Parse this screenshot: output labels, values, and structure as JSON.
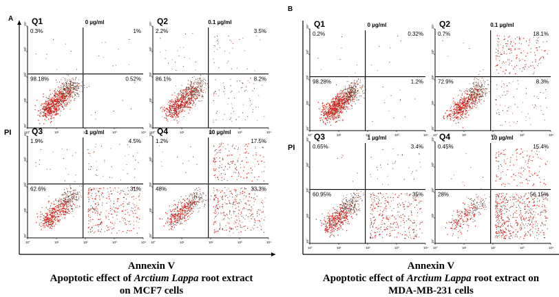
{
  "chart_data": [
    {
      "type": "scatter",
      "panel_label": "A",
      "xlabel": "Annexin V",
      "ylabel": "PI",
      "caption": {
        "line1_pre": "Apoptotic effect of ",
        "line1_italic": "Arctium Lappa",
        "line1_post": " root extract",
        "line2": "on MCF7 cells"
      },
      "axis_scale": "log",
      "tick_labels": [
        "10°",
        "10¹",
        "10²",
        "10³",
        "10⁴"
      ],
      "plots": [
        {
          "quadrant_label": "Q1",
          "condition": "0 µg/ml",
          "q_ul": "0.3%",
          "q_ur": "1%",
          "q_ll": "98.18%",
          "q_lr": "0.52%",
          "values": {
            "ul": 0.3,
            "ur": 1,
            "ll": 98.18,
            "lr": 0.52
          }
        },
        {
          "quadrant_label": "Q2",
          "condition": "0.1 µg/ml",
          "q_ul": "2.2%",
          "q_ur": "3.5%",
          "q_ll": "86.1%",
          "q_lr": "8.2%",
          "values": {
            "ul": 2.2,
            "ur": 3.5,
            "ll": 86.1,
            "lr": 8.2
          }
        },
        {
          "quadrant_label": "Q3",
          "condition": "1 µg/ml",
          "q_ul": "1.9%",
          "q_ur": "4.5%",
          "q_ll": "62.6%",
          "q_lr": "31%",
          "values": {
            "ul": 1.9,
            "ur": 4.5,
            "ll": 62.6,
            "lr": 31
          }
        },
        {
          "quadrant_label": "Q4",
          "condition": "10 µg/ml",
          "q_ul": "1.2%",
          "q_ur": "17.5%",
          "q_ll": "48%",
          "q_lr": "33.3%",
          "values": {
            "ul": 1.2,
            "ur": 17.5,
            "ll": 48,
            "lr": 33.3
          }
        }
      ],
      "colors": {
        "dense": "#e8201a",
        "mid": "#b85030",
        "sparse": "#3a2a20"
      }
    },
    {
      "type": "scatter",
      "panel_label": "B",
      "xlabel": "Annexin V",
      "ylabel": "PI",
      "caption": {
        "line1_pre": "Apoptotic effect of ",
        "line1_italic": "Arctium Lappa",
        "line1_post": " root extract on",
        "line2": "MDA-MB-231 cells"
      },
      "axis_scale": "log",
      "tick_labels": [
        "10°",
        "10¹",
        "10²",
        "10³",
        "10⁴"
      ],
      "plots": [
        {
          "quadrant_label": "Q1",
          "condition": "0 µg/ml",
          "q_ul": "0.2%",
          "q_ur": "0.32%",
          "q_ll": "98.28%",
          "q_lr": "1.2%",
          "values": {
            "ul": 0.2,
            "ur": 0.32,
            "ll": 98.28,
            "lr": 1.2
          }
        },
        {
          "quadrant_label": "Q2",
          "condition": "0.1 µg/ml",
          "q_ul": "0.7%",
          "q_ur": "18.1%",
          "q_ll": "72.9%",
          "q_lr": "8.3%",
          "values": {
            "ul": 0.7,
            "ur": 18.1,
            "ll": 72.9,
            "lr": 8.3
          }
        },
        {
          "quadrant_label": "Q3",
          "condition": "1 µg/ml",
          "q_ul": "0.65%",
          "q_ur": "3.4%",
          "q_ll": "60.95%",
          "q_lr": "35%",
          "values": {
            "ul": 0.65,
            "ur": 3.4,
            "ll": 60.95,
            "lr": 35
          }
        },
        {
          "quadrant_label": "Q4",
          "condition": "10 µg/ml",
          "q_ul": "0.45%",
          "q_ur": "15.4%",
          "q_ll": "28%",
          "q_lr": "56.15%",
          "values": {
            "ul": 0.45,
            "ur": 15.4,
            "ll": 28,
            "lr": 56.15
          }
        }
      ],
      "colors": {
        "dense": "#e8201a",
        "mid": "#b85030",
        "sparse": "#3a2a20"
      }
    }
  ]
}
